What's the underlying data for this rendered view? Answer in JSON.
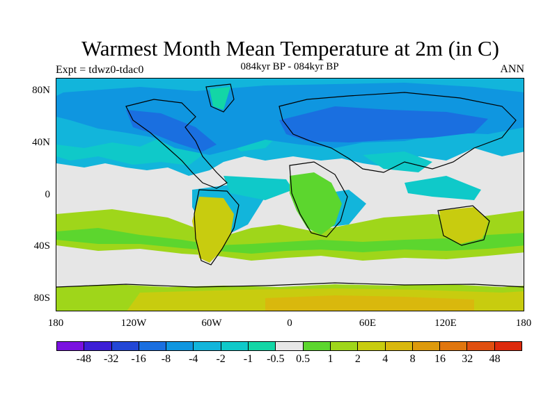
{
  "title": "Warmest Month Mean Temperature at 2m (in C)",
  "subtitle": "084kyr BP - 084kyr BP",
  "left_label": "Expt = tdwz0-tdac0",
  "right_label": "ANN",
  "y_axis_ticks": [
    "80N",
    "40N",
    "0",
    "40S",
    "80S"
  ],
  "x_axis_ticks": [
    "180",
    "120W",
    "60W",
    "0",
    "60E",
    "120E",
    "180"
  ],
  "colorbar": {
    "colors": [
      "#7a11e0",
      "#3d1fd6",
      "#2347d6",
      "#1a6fe0",
      "#0f96e0",
      "#12b5db",
      "#0fc9c9",
      "#13d6a6",
      "#e6e6e6",
      "#5cd62e",
      "#9fd61a",
      "#c8cc0f",
      "#d9b80d",
      "#dd9a0c",
      "#e0760e",
      "#e04f10",
      "#dd2a0c"
    ],
    "labels": [
      "-48",
      "-32",
      "-16",
      "-8",
      "-4",
      "-2",
      "-1",
      "-0.5",
      "0.5",
      "1",
      "2",
      "4",
      "8",
      "16",
      "32",
      "48"
    ]
  }
}
